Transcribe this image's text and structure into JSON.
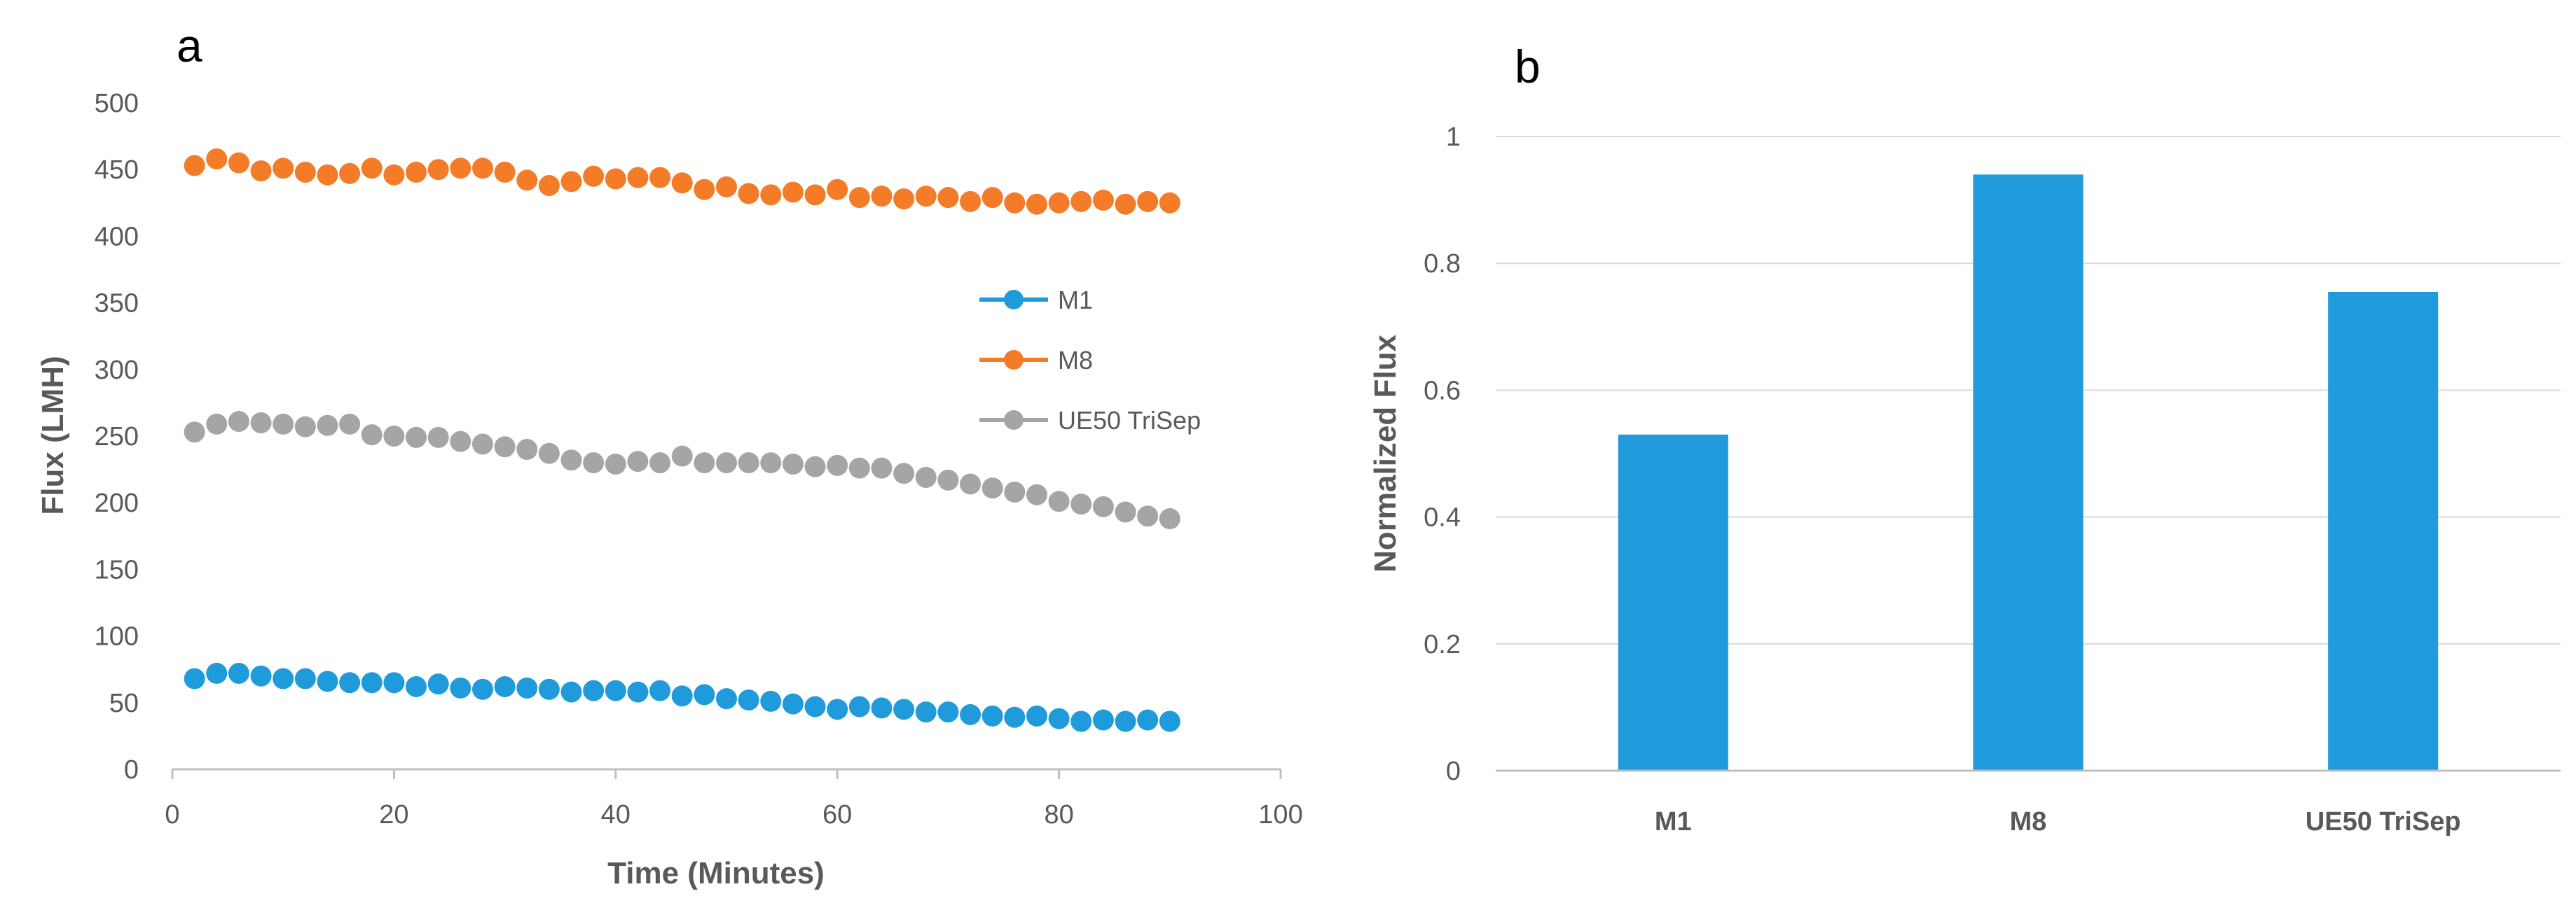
{
  "chart_data": [
    {
      "panel": "a",
      "type": "scatter",
      "title": "",
      "xlabel": "Time (Minutes)",
      "ylabel": "Flux (LMH)",
      "xlim": [
        0,
        100
      ],
      "ylim": [
        0,
        500
      ],
      "xticks": [
        "0",
        "20",
        "40",
        "60",
        "80",
        "100"
      ],
      "yticks": [
        "0",
        "50",
        "100",
        "150",
        "200",
        "250",
        "300",
        "350",
        "400",
        "450",
        "500"
      ],
      "legend_position": "center-right",
      "x": [
        2,
        4,
        6,
        8,
        10,
        12,
        14,
        16,
        18,
        20,
        22,
        24,
        26,
        28,
        30,
        32,
        34,
        36,
        38,
        40,
        42,
        44,
        46,
        48,
        50,
        52,
        54,
        56,
        58,
        60,
        62,
        64,
        66,
        68,
        70,
        72,
        74,
        76,
        78,
        80,
        82,
        84,
        86,
        88,
        90
      ],
      "series": [
        {
          "name": "M1",
          "color": "#1F9BDB",
          "values": [
            68,
            72,
            72,
            70,
            68,
            68,
            66,
            65,
            65,
            65,
            62,
            64,
            61,
            60,
            62,
            61,
            60,
            58,
            59,
            59,
            58,
            59,
            55,
            56,
            53,
            52,
            51,
            49,
            47,
            45,
            47,
            46,
            45,
            43,
            43,
            41,
            40,
            39,
            40,
            38,
            36,
            37,
            36,
            37,
            36
          ]
        },
        {
          "name": "M8",
          "color": "#F47B28",
          "values": [
            453,
            458,
            455,
            449,
            451,
            448,
            446,
            447,
            451,
            446,
            448,
            450,
            451,
            451,
            448,
            442,
            438,
            441,
            445,
            443,
            444,
            444,
            440,
            435,
            437,
            432,
            431,
            433,
            431,
            435,
            429,
            430,
            428,
            430,
            429,
            426,
            429,
            425,
            424,
            425,
            426,
            427,
            424,
            426,
            425
          ]
        },
        {
          "name": "UE50 TriSep",
          "color": "#A5A5A5",
          "values": [
            253,
            259,
            261,
            260,
            259,
            257,
            258,
            259,
            251,
            250,
            249,
            249,
            246,
            244,
            242,
            240,
            237,
            232,
            230,
            229,
            231,
            230,
            235,
            230,
            230,
            230,
            230,
            229,
            227,
            228,
            226,
            226,
            222,
            219,
            217,
            214,
            211,
            208,
            206,
            201,
            199,
            197,
            193,
            190,
            188
          ]
        }
      ]
    },
    {
      "panel": "b",
      "type": "bar",
      "title": "",
      "xlabel": "",
      "ylabel": "Normalized Flux",
      "ylim": [
        0,
        1
      ],
      "yticks": [
        "0",
        "0.2",
        "0.4",
        "0.6",
        "0.8",
        "1"
      ],
      "categories": [
        "M1",
        "M8",
        "UE50 TriSep"
      ],
      "values": [
        0.53,
        0.94,
        0.755
      ],
      "color": "#1F9BDB"
    }
  ]
}
